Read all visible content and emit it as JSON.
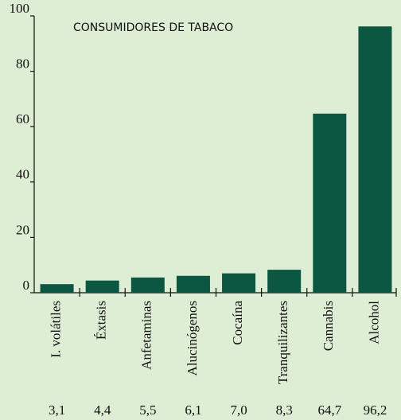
{
  "chart_data": {
    "type": "bar",
    "title": "CONSUMIDORES DE TABACO",
    "categories": [
      "I. volátiles",
      "Éxtasis",
      "Anfetaminas",
      "Alucinógenos",
      "Cocaína",
      "Tranquilizantes",
      "Cannabis",
      "Alcohol"
    ],
    "values": [
      3.1,
      4.4,
      5.5,
      6.1,
      7.0,
      8.3,
      64.7,
      96.2
    ],
    "value_labels": [
      "3,1",
      "4,4",
      "5,5",
      "6,1",
      "7,0",
      "8,3",
      "64,7",
      "96,2"
    ],
    "color": "#0c5741",
    "ylim": [
      0,
      100
    ],
    "yticks": [
      0,
      20,
      40,
      60,
      80,
      100
    ]
  }
}
